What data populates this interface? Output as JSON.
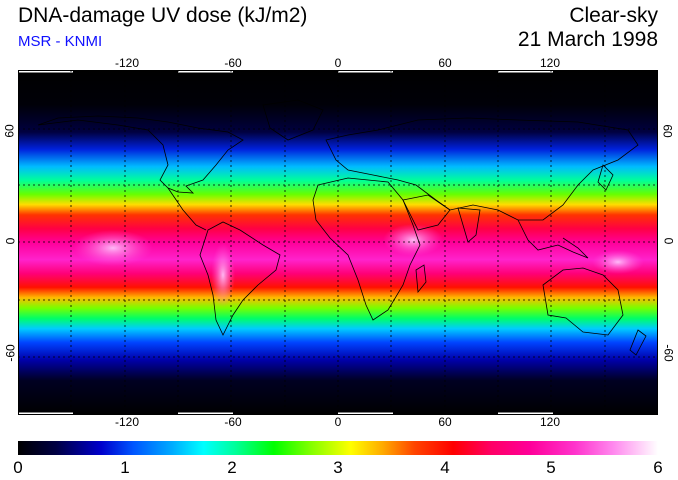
{
  "title": "DNA-damage UV dose (kJ/m2)",
  "subtitle": "MSR - KNMI",
  "regime": "Clear-sky",
  "date": "21 March 1998",
  "map": {
    "longitude_ticks": [
      "-120",
      "-60",
      "0",
      "60",
      "120"
    ],
    "latitude_ticks": [
      "60",
      "0",
      "-60"
    ]
  },
  "colorbar": {
    "min": 0,
    "max": 6,
    "labels": [
      "0",
      "1",
      "2",
      "3",
      "4",
      "5",
      "6"
    ]
  },
  "colors": {
    "subtitle": "#1010ff",
    "land_outline": "#000000",
    "grid": "#000000"
  }
}
